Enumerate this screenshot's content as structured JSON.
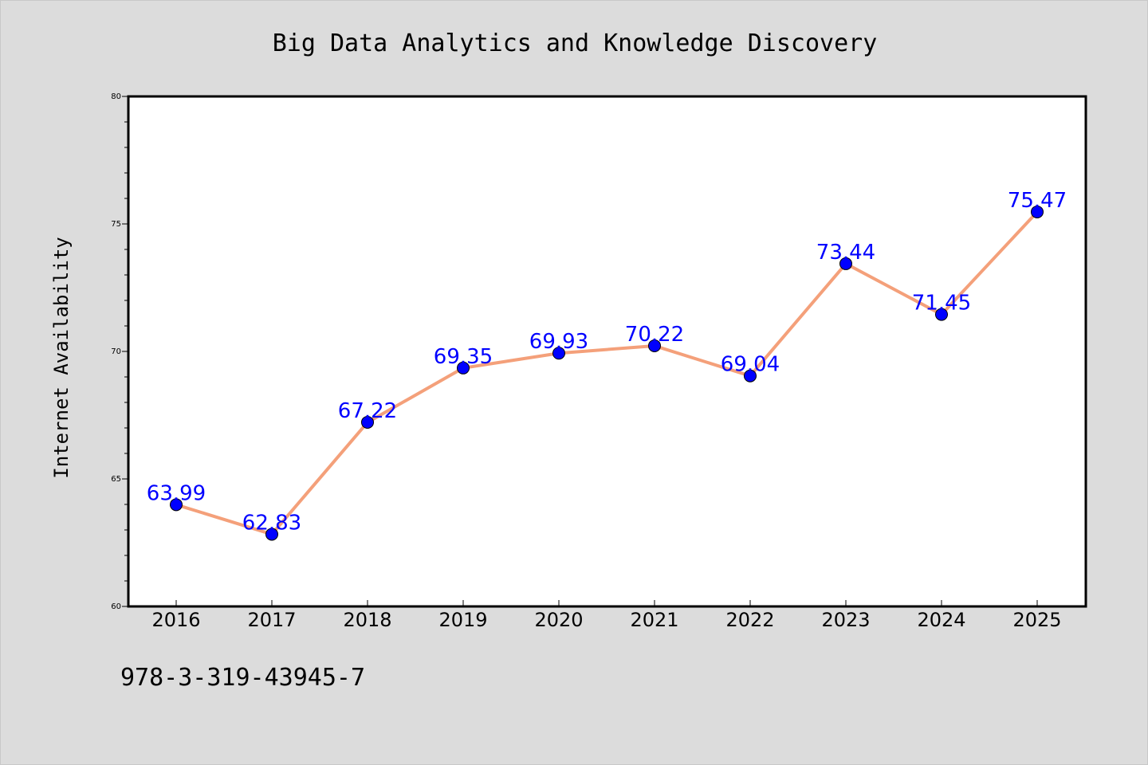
{
  "chart_data": {
    "type": "line",
    "title": "Big Data Analytics and Knowledge Discovery",
    "xlabel": "",
    "ylabel": "Internet Availability",
    "x": [
      "2016",
      "2017",
      "2018",
      "2019",
      "2020",
      "2021",
      "2022",
      "2023",
      "2024",
      "2025"
    ],
    "series": [
      {
        "values": [
          63.99,
          62.83,
          67.22,
          69.35,
          69.93,
          70.22,
          69.04,
          73.44,
          71.45,
          75.47
        ],
        "line_color": "#f4a07a",
        "marker_color": "#0000ff"
      }
    ],
    "data_labels": [
      "63.99",
      "62.83",
      "67.22",
      "69.35",
      "69.93",
      "70.22",
      "69.04",
      "73.44",
      "71.45",
      "75.47"
    ],
    "ylim": [
      60,
      80
    ],
    "yticks": [
      60,
      65,
      70,
      75,
      80
    ],
    "yticks_minor_step": 1,
    "grid": false,
    "legend": "none",
    "label_color": "#0000ff"
  },
  "footer": {
    "text": "978-3-319-43945-7"
  }
}
